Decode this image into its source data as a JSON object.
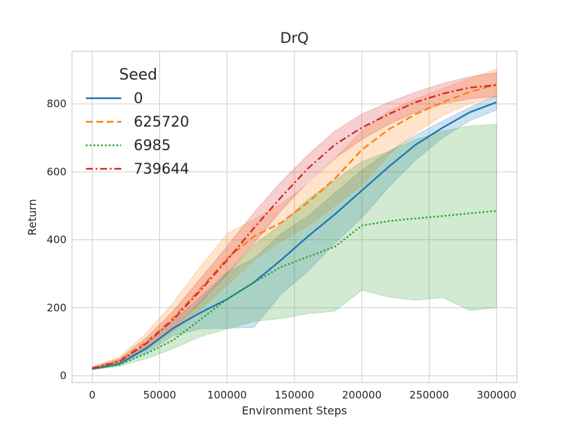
{
  "chart_data": {
    "type": "line",
    "title": "DrQ",
    "xlabel": "Environment Steps",
    "ylabel": "Return",
    "xlim": [
      -15000,
      315000
    ],
    "ylim": [
      -20,
      955
    ],
    "xticks": [
      0,
      50000,
      100000,
      150000,
      200000,
      250000,
      300000
    ],
    "xtick_labels": [
      "0",
      "50000",
      "100000",
      "150000",
      "200000",
      "250000",
      "300000"
    ],
    "yticks": [
      0,
      200,
      400,
      600,
      800
    ],
    "ytick_labels": [
      "0",
      "200",
      "400",
      "600",
      "800"
    ],
    "grid": true,
    "legend": {
      "title": "Seed",
      "placement": "top-left"
    },
    "x": [
      0,
      20000,
      40000,
      60000,
      80000,
      100000,
      120000,
      140000,
      160000,
      180000,
      200000,
      220000,
      240000,
      260000,
      280000,
      300000
    ],
    "series": [
      {
        "name": "0",
        "color": "#1f77b4",
        "style": "solid",
        "values": [
          20,
          35,
          80,
          140,
          185,
          225,
          275,
          340,
          410,
          475,
          545,
          615,
          680,
          730,
          775,
          805
        ],
        "lower": [
          18,
          30,
          68,
          118,
          138,
          140,
          142,
          240,
          308,
          390,
          465,
          555,
          635,
          700,
          750,
          782
        ],
        "upper": [
          23,
          42,
          95,
          162,
          230,
          305,
          345,
          418,
          470,
          538,
          605,
          660,
          708,
          750,
          790,
          825
        ]
      },
      {
        "name": "625720",
        "color": "#ff7f0e",
        "style": "dashed",
        "values": [
          22,
          45,
          100,
          170,
          255,
          345,
          410,
          450,
          510,
          580,
          665,
          725,
          770,
          805,
          835,
          857
        ],
        "lower": [
          18,
          36,
          80,
          130,
          195,
          265,
          340,
          395,
          440,
          500,
          560,
          650,
          715,
          765,
          800,
          820
        ],
        "upper": [
          26,
          55,
          125,
          215,
          320,
          418,
          460,
          505,
          565,
          640,
          720,
          780,
          815,
          845,
          875,
          902
        ]
      },
      {
        "name": "6985",
        "color": "#2ca02c",
        "style": "dotted",
        "values": [
          20,
          33,
          65,
          105,
          165,
          225,
          275,
          320,
          350,
          380,
          442,
          455,
          463,
          470,
          478,
          485
        ],
        "lower": [
          18,
          28,
          50,
          80,
          115,
          138,
          160,
          168,
          183,
          190,
          252,
          232,
          222,
          230,
          192,
          200
        ],
        "upper": [
          23,
          40,
          85,
          135,
          215,
          300,
          385,
          445,
          520,
          575,
          630,
          660,
          695,
          720,
          735,
          740
        ]
      },
      {
        "name": "739644",
        "color": "#d62728",
        "style": "dashdot",
        "values": [
          22,
          42,
          95,
          165,
          250,
          340,
          435,
          525,
          610,
          680,
          730,
          770,
          805,
          830,
          848,
          855
        ],
        "lower": [
          18,
          36,
          80,
          140,
          215,
          300,
          390,
          485,
          570,
          640,
          695,
          740,
          775,
          800,
          815,
          822
        ],
        "upper": [
          26,
          50,
          112,
          190,
          285,
          380,
          480,
          570,
          650,
          720,
          770,
          805,
          835,
          860,
          880,
          892
        ]
      }
    ]
  }
}
